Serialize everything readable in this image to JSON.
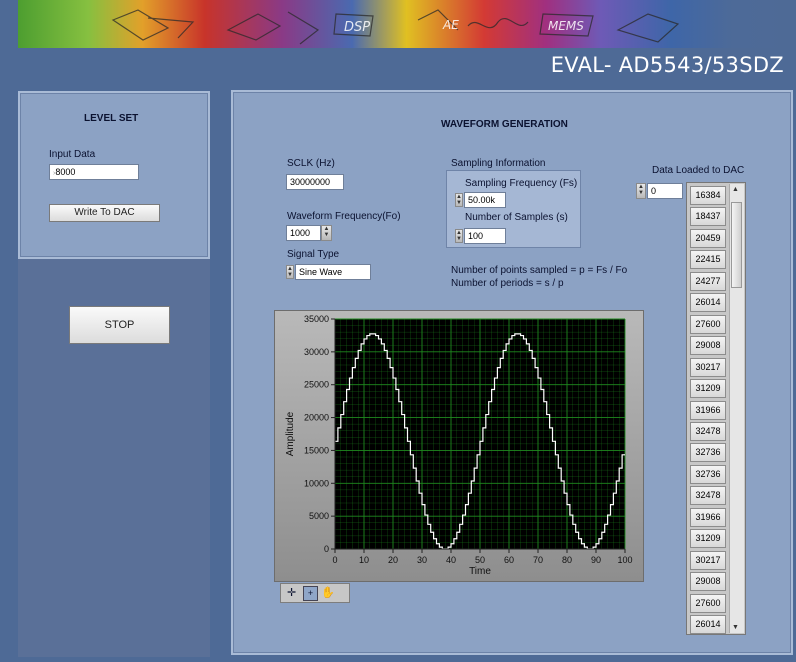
{
  "title": "EVAL- AD5543/53SDZ",
  "banner_text": [
    "DSP",
    "AE",
    "MEMS"
  ],
  "level_set": {
    "header": "LEVEL SET",
    "input_label": "Input Data",
    "input_value": "8000",
    "write_button": "Write To DAC"
  },
  "stop_button": "STOP",
  "waveform": {
    "header": "WAVEFORM GENERATION",
    "sclk_label": "SCLK (Hz)",
    "sclk_value": "30000000",
    "freq_label": "Waveform Frequency(Fo)",
    "freq_value": "1000",
    "signal_label": "Signal Type",
    "signal_value": "Sine Wave",
    "sampling_group_label": "Sampling Information",
    "fs_label": "Sampling Frequency (Fs)",
    "fs_value": "50.00k",
    "samples_label": "Number of Samples (s)",
    "samples_value": "100",
    "formula1": "Number of points sampled = p = Fs / Fo",
    "formula2": "Number of periods = s / p",
    "dac_label": "Data Loaded to DAC",
    "dac_index": "0",
    "dac_values": [
      "16384",
      "18437",
      "20459",
      "22415",
      "24277",
      "26014",
      "27600",
      "29008",
      "30217",
      "31209",
      "31966",
      "32478",
      "32736",
      "32736",
      "32478",
      "31966",
      "31209",
      "30217",
      "29008",
      "27600",
      "26014"
    ]
  },
  "graph": {
    "icons": [
      "crosshair-tool-icon",
      "zoom-tool-icon",
      "pan-tool-icon"
    ]
  },
  "chart_data": {
    "type": "line",
    "xlabel": "Time",
    "ylabel": "Amplitude",
    "xlim": [
      0,
      100
    ],
    "ylim": [
      0,
      35000
    ],
    "x_ticks": [
      "0",
      "10",
      "20",
      "30",
      "40",
      "50",
      "60",
      "70",
      "80",
      "90",
      "100"
    ],
    "y_ticks": [
      "0",
      "5000",
      "10000",
      "15000",
      "20000",
      "25000",
      "30000",
      "35000"
    ],
    "series": [
      {
        "color": "#ffffff",
        "step": true,
        "values": [
          16384,
          18437,
          20459,
          22415,
          24277,
          26014,
          27600,
          29008,
          30217,
          31209,
          31966,
          32478,
          32736,
          32736,
          32478,
          31966,
          31209,
          30217,
          29008,
          27600,
          26014,
          24277,
          22415,
          20459,
          18437,
          16384,
          14331,
          12309,
          10353,
          8491,
          6754,
          5168,
          3760,
          2551,
          1559,
          802,
          290,
          32,
          32,
          290,
          802,
          1559,
          2551,
          3760,
          5168,
          6754,
          8491,
          10353,
          12309,
          14331,
          16384,
          18437,
          20459,
          22415,
          24277,
          26014,
          27600,
          29008,
          30217,
          31209,
          31966,
          32478,
          32736,
          32736,
          32478,
          31966,
          31209,
          30217,
          29008,
          27600,
          26014,
          24277,
          22415,
          20459,
          18437,
          16384,
          14331,
          12309,
          10353,
          8491,
          6754,
          5168,
          3760,
          2551,
          1559,
          802,
          290,
          32,
          32,
          290,
          802,
          1559,
          2551,
          3760,
          5168,
          6754,
          8491,
          10353,
          12309,
          14331
        ]
      }
    ],
    "grid": true,
    "plot_background": "#000000",
    "grid_color": "#1f8a1f"
  },
  "colors": {
    "background": "#4e6a96",
    "panel": "#8ca2c4",
    "plot_bg": "#000000",
    "grid": "#1f8a1f",
    "trace": "#ffffff"
  }
}
